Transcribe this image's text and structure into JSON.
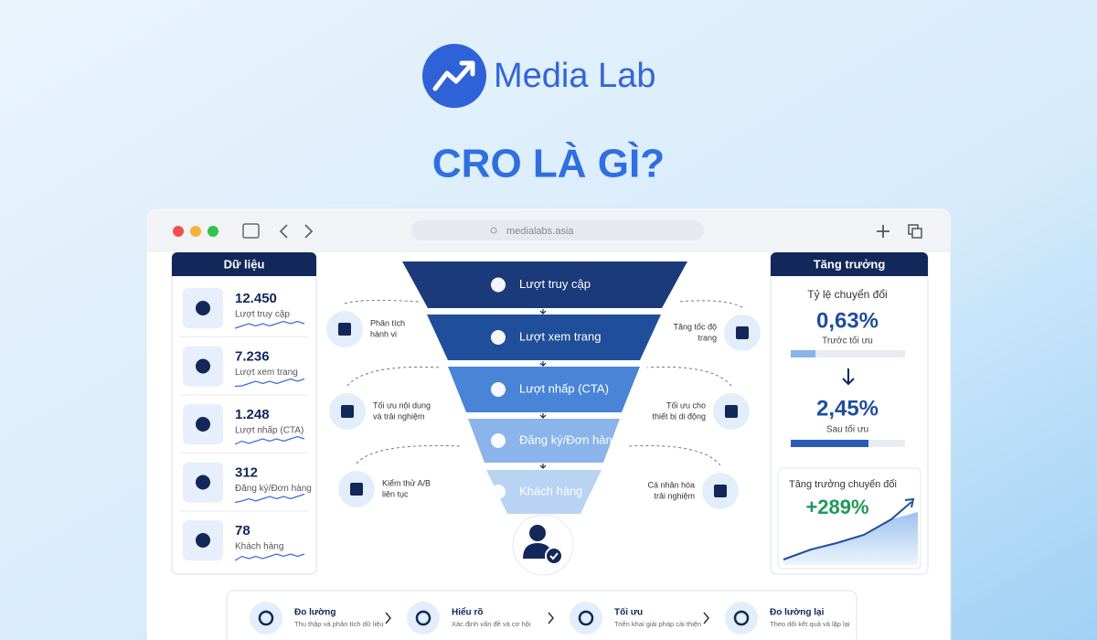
{
  "brand": "Media Lab",
  "title": "CRO LÀ GÌ?",
  "browser": {
    "url": "medialabs.asia"
  },
  "data_panel": {
    "title": "Dữ liệu",
    "items": [
      {
        "value": "12.450",
        "label": "Lượt truy cập"
      },
      {
        "value": "7.236",
        "label": "Lượt xem trang"
      },
      {
        "value": "1.248",
        "label": "Lượt nhấp (CTA)"
      },
      {
        "value": "312",
        "label": "Đăng ký/Đơn hàng"
      },
      {
        "value": "78",
        "label": "Khách hàng"
      }
    ]
  },
  "funnel": {
    "stages": [
      "Lượt truy cập",
      "Lượt xem trang",
      "Lượt nhấp (CTA)",
      "Đăng ký/Đơn hàng",
      "Khách hàng"
    ]
  },
  "tactics_left": [
    {
      "lines": [
        "Phân tích",
        "hành vi"
      ]
    },
    {
      "lines": [
        "Tối ưu nội dung",
        "và trải nghiệm"
      ]
    },
    {
      "lines": [
        "Kiểm thử A/B",
        "liên tục"
      ]
    }
  ],
  "tactics_right": [
    {
      "lines": [
        "Tăng tốc độ",
        "trang"
      ]
    },
    {
      "lines": [
        "Tối ưu cho",
        "thiết bị di động"
      ]
    },
    {
      "lines": [
        "Cá nhân hóa",
        "trải nghiệm"
      ]
    }
  ],
  "growth_panel": {
    "title": "Tăng trưởng",
    "rate_label": "Tỷ lệ chuyển đổi",
    "before_value": "0,63%",
    "before_label": "Trước tối ưu",
    "after_value": "2,45%",
    "after_label": "Sau tối ưu",
    "growth_label": "Tăng trưởng chuyển đổi",
    "growth_value": "+289%"
  },
  "steps": [
    {
      "title": "Đo lường",
      "desc": "Thu thập và phân tích dữ liệu"
    },
    {
      "title": "Hiểu rõ",
      "desc": "Xác định vấn đề và cơ hội"
    },
    {
      "title": "Tối ưu",
      "desc": "Triển khai giải pháp cải thiện"
    },
    {
      "title": "Đo lường lại",
      "desc": "Theo dõi kết quả và lặp lại"
    }
  ]
}
